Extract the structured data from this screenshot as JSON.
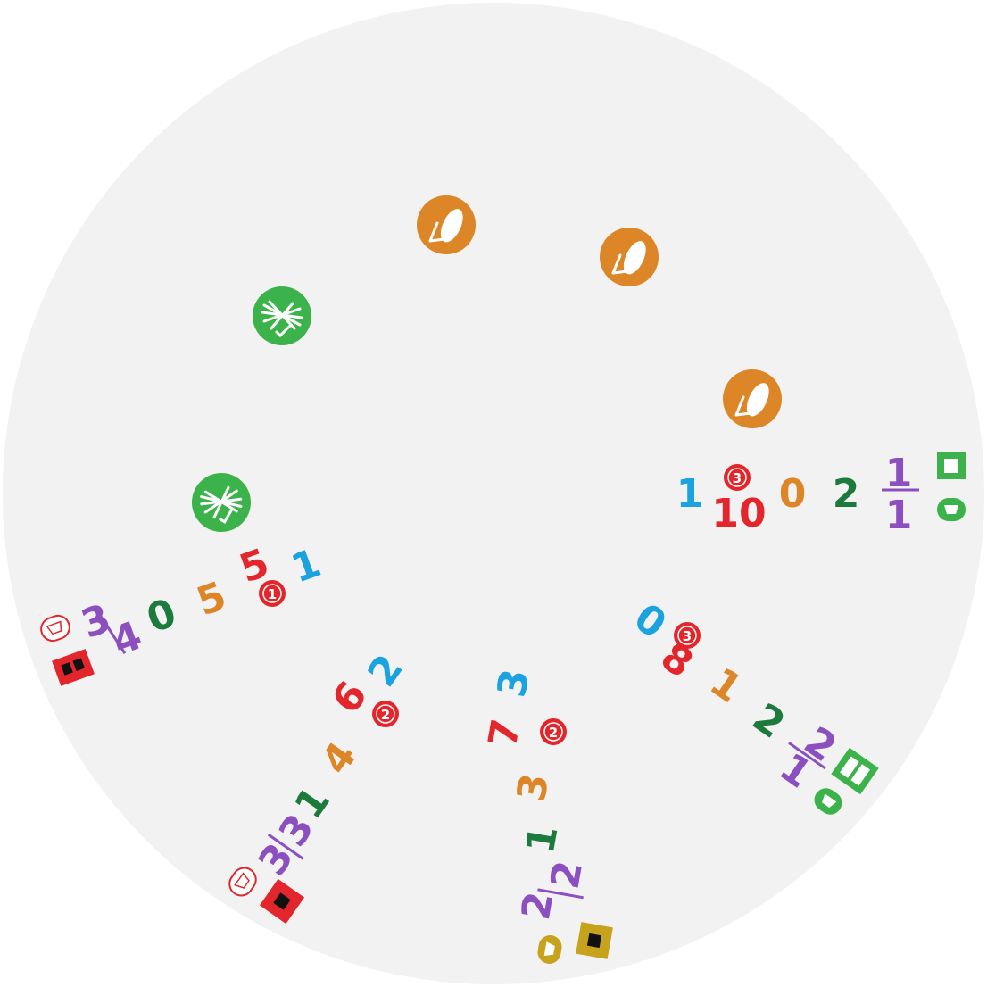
{
  "board": {
    "background": "#f2f2f2"
  },
  "colors": {
    "blue": "#1aa3e0",
    "red": "#e3262b",
    "orange": "#dc8628",
    "dark_green": "#1c7a3d",
    "purple": "#8c4fbf",
    "green": "#3bb34a",
    "olive": "#c7a21d",
    "black": "#111111",
    "white": "#ffffff"
  },
  "tokens": [
    {
      "icon": "corn-cob-icon",
      "color": "#dc8628"
    },
    {
      "icon": "corn-cob-icon",
      "color": "#dc8628"
    },
    {
      "icon": "corn-cob-icon",
      "color": "#dc8628"
    },
    {
      "icon": "wheat-bundle-icon",
      "color": "#3bb34a"
    },
    {
      "icon": "wheat-bundle-icon",
      "color": "#3bb34a"
    }
  ],
  "tracks": {
    "right": {
      "blue": "1",
      "red_badge": "3",
      "red": "10",
      "orange": "0",
      "green": "2",
      "fraction": {
        "num": "1",
        "den": "1"
      },
      "square_icon": "green-square-icon",
      "pill_icon": "green-pill-icon"
    },
    "left": {
      "blue": "1",
      "red_badge": "1",
      "red": "5",
      "orange": "5",
      "green": "0",
      "fraction": {
        "num": "3",
        "den": "4"
      },
      "square_icon": "red-square-icon",
      "pill_icon": "red-outline-pill-icon"
    },
    "lower_left": {
      "blue": "2",
      "red_badge": "2",
      "red": "6",
      "orange": "4",
      "green": "1",
      "fraction": {
        "num": "3",
        "den": "3"
      },
      "square_icon": "red-square-icon",
      "pill_icon": "red-outline-pill-icon"
    },
    "bottom": {
      "blue": "3",
      "red_badge": "2",
      "red": "7",
      "orange": "3",
      "green": "1",
      "fraction": {
        "num": "2",
        "den": "2"
      },
      "square_icon": "olive-square-icon",
      "pill_icon": "olive-pill-icon"
    },
    "lower_right": {
      "blue": "0",
      "red_badge": "3",
      "red": "8",
      "orange": "1",
      "green": "2",
      "fraction": {
        "num": "2",
        "den": "1"
      },
      "square_icon": "green-square-icon",
      "pill_icon": "green-pill-icon"
    }
  }
}
